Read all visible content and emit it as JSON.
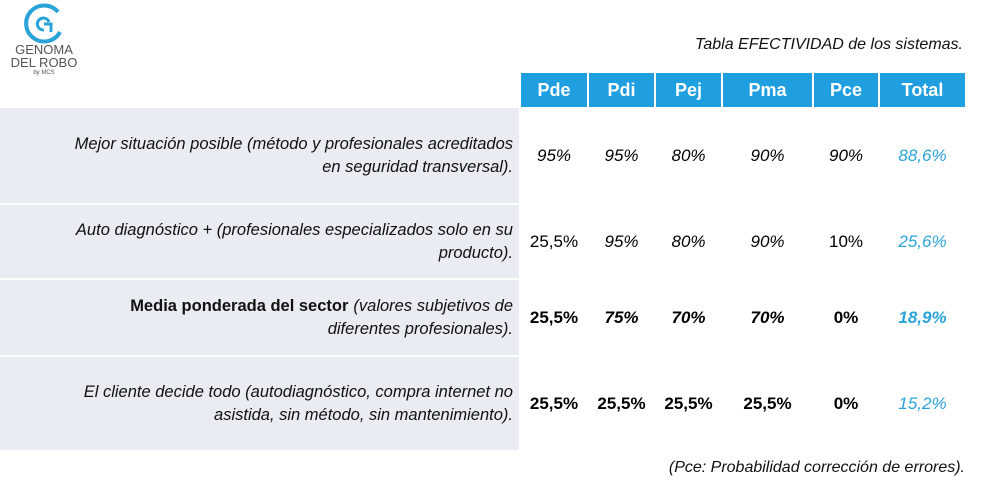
{
  "logo": {
    "line1": "GENOMA",
    "line2": "DEL ROBO",
    "line3": "by MCS"
  },
  "title": "Tabla EFECTIVIDAD de los sistemas.",
  "table": {
    "columns": [
      "Pde",
      "Pdi",
      "Pej",
      "Pma",
      "Pce",
      "Total"
    ],
    "rows": [
      {
        "label": [
          "Mejor situación posible (método y profesionales acreditados",
          "en seguridad transversal)."
        ],
        "values": [
          "95%",
          "95%",
          "80%",
          "90%",
          "90%",
          "88,6%"
        ]
      },
      {
        "label": [
          "Auto diagnóstico + (profesionales especializados solo en su",
          "producto)."
        ],
        "values": [
          "25,5%",
          "95%",
          "80%",
          "90%",
          "10%",
          "25,6%"
        ]
      },
      {
        "label_bold": "Media ponderada del sector",
        "label": [
          "(valores subjetivos de",
          "diferentes profesionales)."
        ],
        "values": [
          "25,5%",
          "75%",
          "70%",
          "70%",
          "0%",
          "18,9%"
        ]
      },
      {
        "label": [
          "El cliente decide todo (autodiagnóstico, compra internet no",
          "asistida, sin método, sin mantenimiento)."
        ],
        "values": [
          "25,5%",
          "25,5%",
          "25,5%",
          "25,5%",
          "0%",
          "15,2%"
        ]
      }
    ]
  },
  "footnote": "(Pce: Probabilidad corrección de errores)."
}
